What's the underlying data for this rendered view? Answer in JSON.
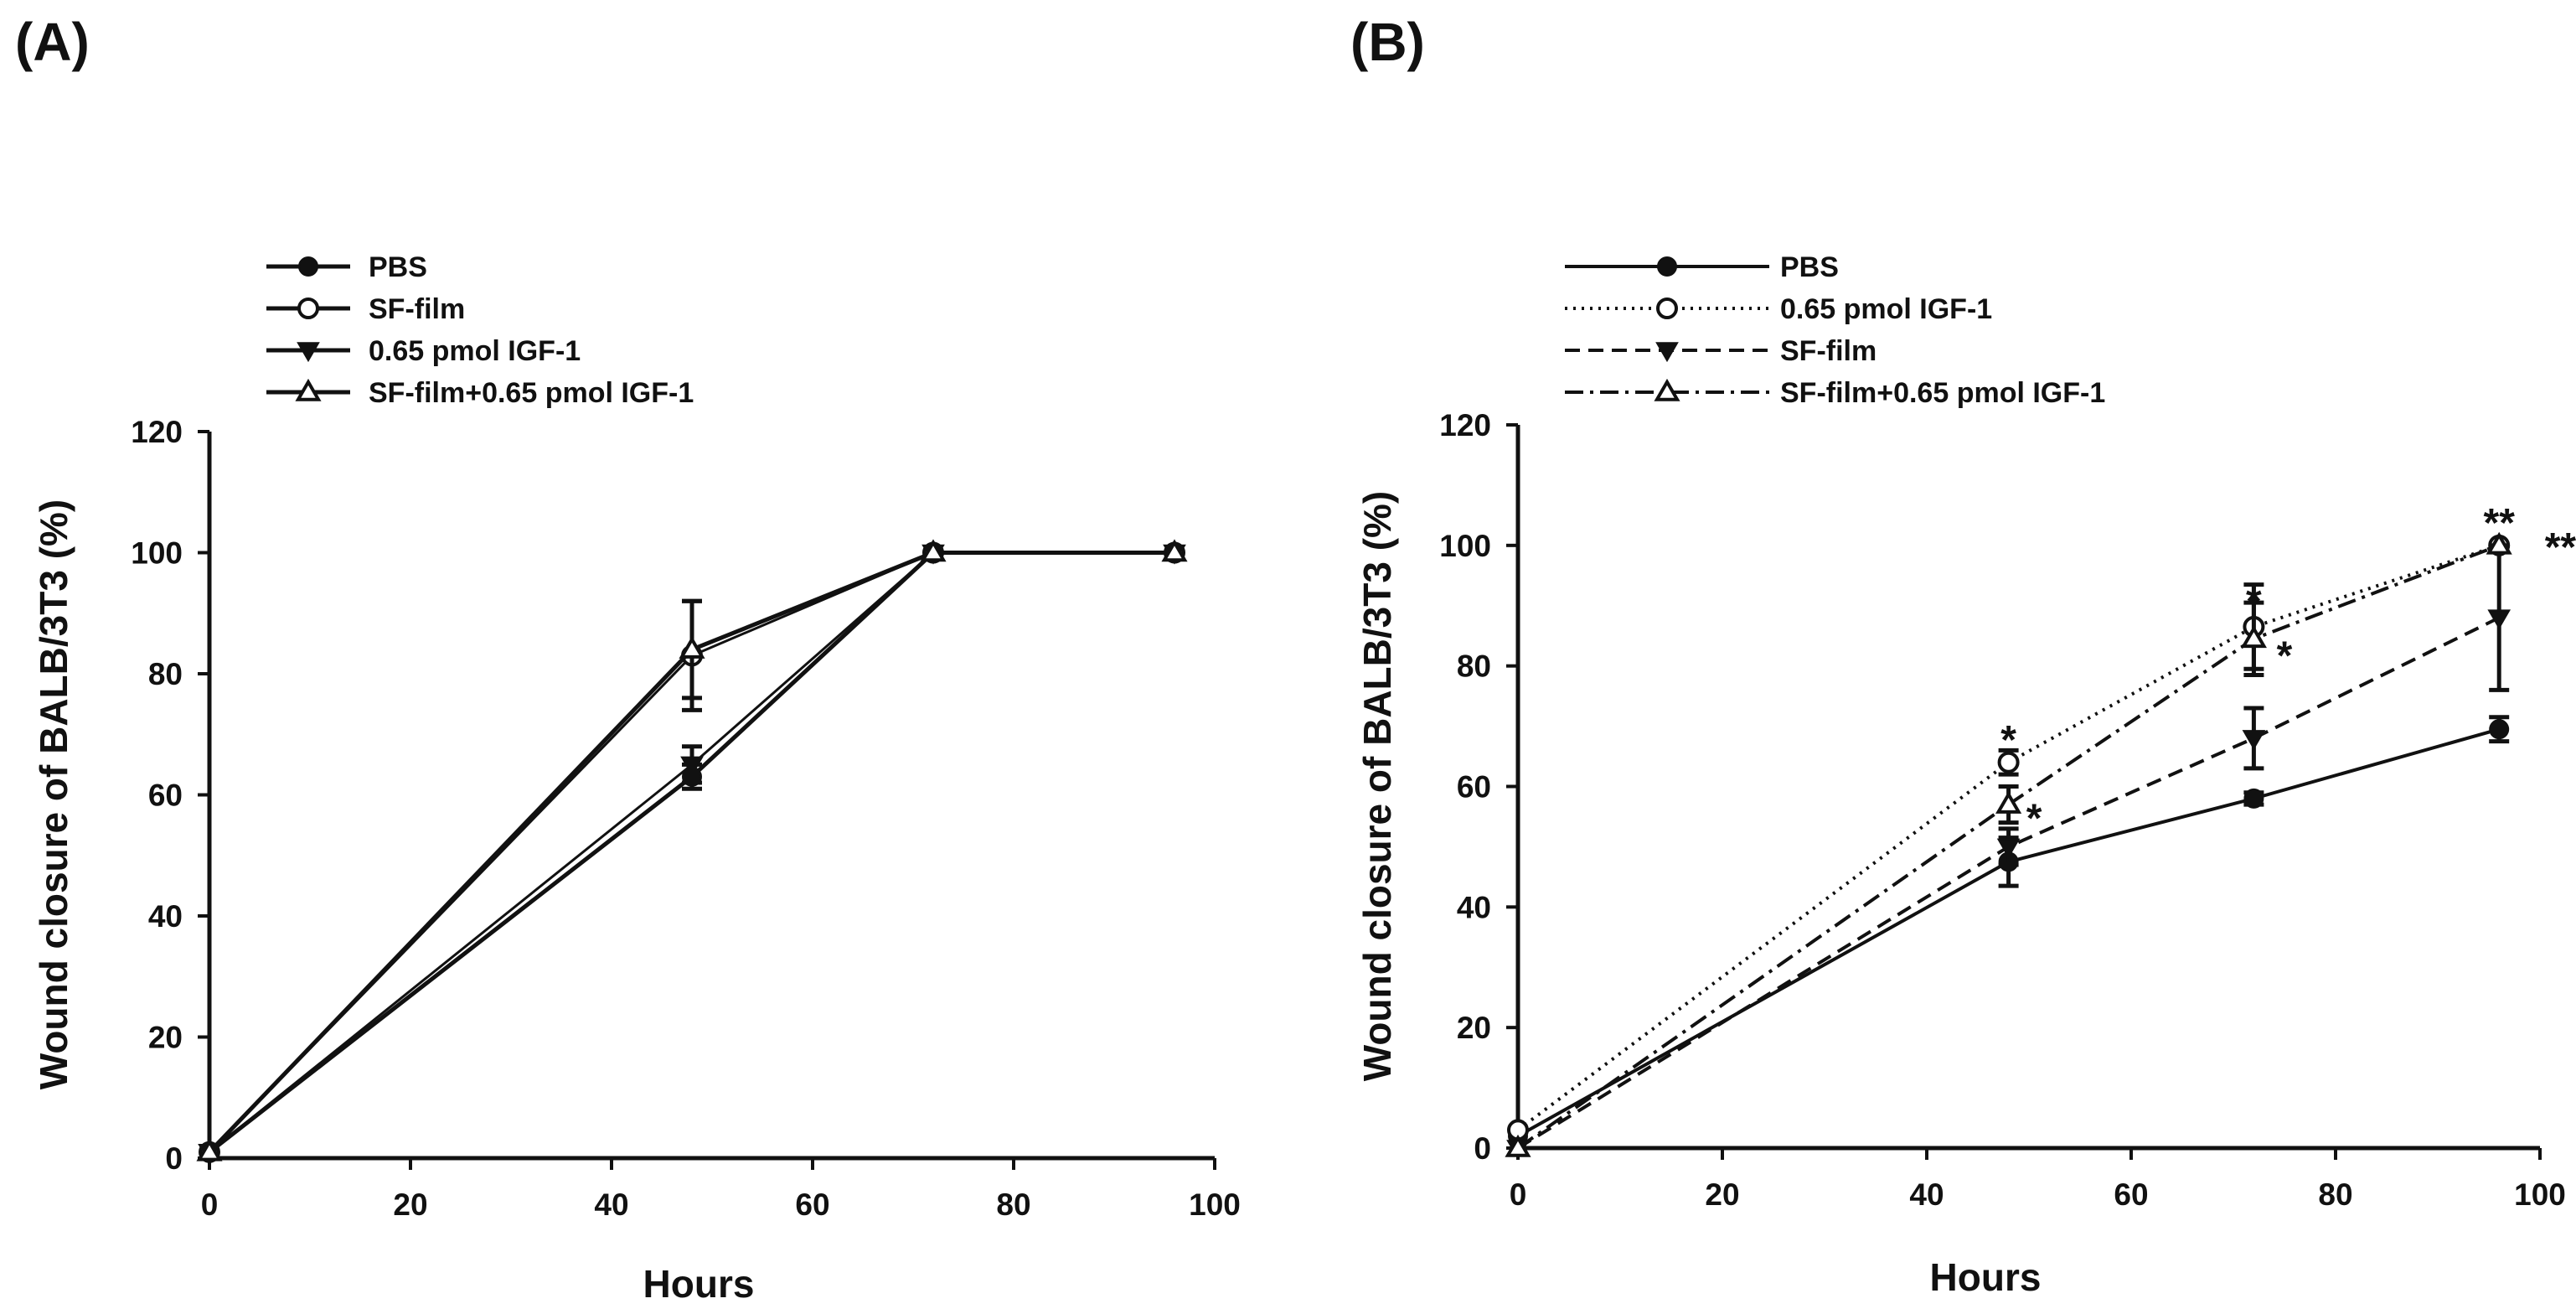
{
  "chart_data": [
    {
      "type": "line",
      "panel_label": "(A)",
      "xlabel": "Hours",
      "ylabel": "Wound closure of BALB/3T3 (%)",
      "xlim": [
        0,
        100
      ],
      "ylim": [
        0,
        120
      ],
      "xticks": [
        "0",
        "20",
        "40",
        "60",
        "80",
        "100"
      ],
      "yticks": [
        "0",
        "20",
        "40",
        "60",
        "80",
        "100",
        "120"
      ],
      "legend_position": "top-left",
      "series": [
        {
          "name": "PBS",
          "marker": "circle-filled",
          "line": "solid",
          "x": [
            0,
            48,
            72,
            96
          ],
          "values": [
            1,
            63,
            100,
            100
          ],
          "errors": [
            0.5,
            2,
            0,
            0
          ]
        },
        {
          "name": "SF-film",
          "marker": "circle-open",
          "line": "solid",
          "x": [
            0,
            48,
            72,
            96
          ],
          "values": [
            1,
            83,
            100,
            100
          ],
          "errors": [
            0.5,
            9,
            0,
            0
          ]
        },
        {
          "name": "0.65 pmol IGF-1",
          "marker": "triangle-down-filled",
          "line": "solid",
          "x": [
            0,
            48,
            72,
            96
          ],
          "values": [
            1,
            65,
            100,
            100
          ],
          "errors": [
            0.5,
            3,
            0,
            0
          ]
        },
        {
          "name": "SF-film+0.65 pmol IGF-1",
          "marker": "triangle-up-open",
          "line": "solid",
          "x": [
            0,
            48,
            72,
            96
          ],
          "values": [
            1,
            84,
            100,
            100
          ],
          "errors": [
            0.5,
            8,
            0,
            0
          ]
        }
      ],
      "annotations": []
    },
    {
      "type": "line",
      "panel_label": "(B)",
      "xlabel": "Hours",
      "ylabel": "Wound closure of BALB/3T3 (%)",
      "xlim": [
        0,
        100
      ],
      "ylim": [
        0,
        120
      ],
      "xticks": [
        "0",
        "20",
        "40",
        "60",
        "80",
        "100"
      ],
      "yticks": [
        "0",
        "20",
        "40",
        "60",
        "80",
        "100",
        "120"
      ],
      "legend_position": "top-left",
      "series": [
        {
          "name": "PBS",
          "marker": "circle-filled",
          "line": "solid",
          "x": [
            0,
            48,
            72,
            96
          ],
          "values": [
            2,
            47.5,
            58,
            69.5
          ],
          "errors": [
            0.5,
            4,
            1,
            2
          ]
        },
        {
          "name": "0.65 pmol IGF-1",
          "marker": "circle-open",
          "line": "dotted",
          "x": [
            0,
            48,
            72,
            96
          ],
          "values": [
            3,
            64,
            86.5,
            100
          ],
          "errors": [
            0.5,
            2,
            7,
            0.5
          ]
        },
        {
          "name": "SF-film",
          "marker": "triangle-down-filled",
          "line": "dashed",
          "x": [
            0,
            48,
            72,
            96
          ],
          "values": [
            0,
            50,
            68,
            88
          ],
          "errors": [
            0.3,
            3,
            5,
            12
          ]
        },
        {
          "name": "SF-film+0.65 pmol IGF-1",
          "marker": "triangle-up-open",
          "line": "dashdot",
          "x": [
            0,
            48,
            72,
            96
          ],
          "values": [
            0,
            57,
            84.5,
            100
          ],
          "errors": [
            0.3,
            3,
            6,
            0.5
          ]
        }
      ],
      "annotations": [
        {
          "text": "*",
          "x": 48,
          "y": 68
        },
        {
          "text": "*",
          "x": 50.5,
          "y": 55
        },
        {
          "text": "*",
          "x": 72,
          "y": 91
        },
        {
          "text": "*",
          "x": 75,
          "y": 82
        },
        {
          "text": "**",
          "x": 96,
          "y": 104
        },
        {
          "text": "**",
          "x": 102,
          "y": 100
        }
      ]
    }
  ],
  "colors": {
    "ink": "#111111",
    "background": "#ffffff"
  }
}
